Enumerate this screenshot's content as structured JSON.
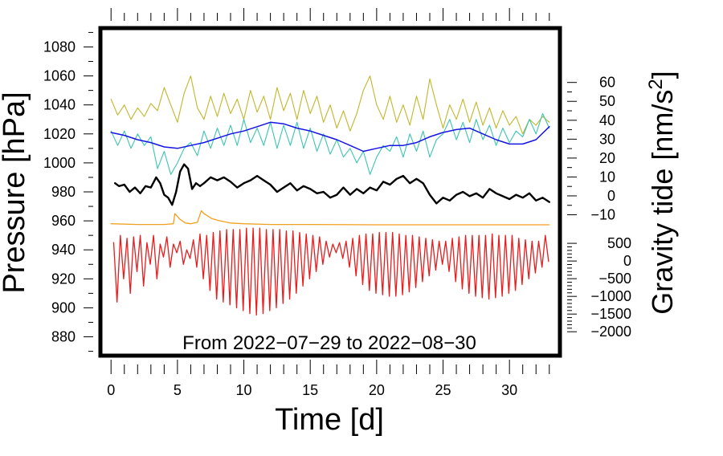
{
  "chart_data": {
    "type": "line",
    "annotation": "From 2022−07−29 to 2022−08−30",
    "xlabel": "Time [d]",
    "ylabel_left": "Pressure [hPa]",
    "ylabel_right_main": "Gravity tide [nm/s",
    "ylabel_right_sup": "2",
    "ylabel_right_tail": "]",
    "xlim": [
      -0.8,
      33.8
    ],
    "x_ticks": [
      "0",
      "5",
      "10",
      "15",
      "20",
      "25",
      "30"
    ],
    "x_tick_values": [
      0,
      5,
      10,
      15,
      20,
      25,
      30
    ],
    "left_axis": {
      "ylim": [
        867,
        1093
      ],
      "ticks": [
        "880",
        "900",
        "920",
        "940",
        "960",
        "980",
        "1000",
        "1020",
        "1040",
        "1060",
        "1080"
      ],
      "tick_values": [
        880,
        900,
        920,
        940,
        960,
        980,
        1000,
        1020,
        1040,
        1060,
        1080
      ]
    },
    "right_axis_upper": {
      "ticks": [
        "60",
        "50",
        "40",
        "30",
        "20",
        "10",
        "0",
        "−10"
      ],
      "tick_values": [
        60,
        50,
        40,
        30,
        20,
        10,
        0,
        -10
      ],
      "hpa_anchor": [
        [
          60,
          1055.5
        ],
        [
          -10,
          964.2
        ]
      ]
    },
    "right_axis_lower": {
      "ticks": [
        "500",
        "0",
        "−500",
        "−1000",
        "−1500",
        "−2000"
      ],
      "tick_values": [
        500,
        0,
        -500,
        -1000,
        -1500,
        -2000
      ],
      "hpa_anchor": [
        [
          500,
          944.5
        ],
        [
          -2000,
          883.5
        ]
      ]
    },
    "series": [
      {
        "name": "gravity-residual-olive",
        "color": "#c2b62c",
        "width": 1.1,
        "x": [
          0.0,
          0.5,
          1.0,
          1.5,
          2.0,
          2.5,
          3.0,
          3.5,
          4.0,
          4.5,
          5.0,
          5.5,
          6.0,
          6.5,
          7.0,
          7.5,
          8.0,
          8.5,
          9.0,
          9.5,
          10.0,
          10.5,
          11.0,
          11.5,
          12.0,
          12.5,
          13.0,
          13.5,
          14.0,
          14.5,
          15.0,
          15.5,
          16.0,
          16.5,
          17.0,
          17.5,
          18.0,
          18.5,
          19.0,
          19.5,
          20.0,
          20.5,
          21.0,
          21.5,
          22.0,
          22.5,
          23.0,
          23.5,
          24.0,
          24.5,
          25.0,
          25.5,
          26.0,
          26.5,
          27.0,
          27.5,
          28.0,
          28.5,
          29.0,
          29.5,
          30.0,
          30.5,
          31.0,
          31.5,
          32.0,
          32.5,
          33.0
        ],
        "y": [
          1044,
          1033,
          1040,
          1030,
          1038,
          1032,
          1041,
          1036,
          1052,
          1040,
          1028,
          1048,
          1060,
          1038,
          1030,
          1046,
          1032,
          1048,
          1034,
          1044,
          1030,
          1050,
          1035,
          1046,
          1030,
          1052,
          1036,
          1048,
          1030,
          1050,
          1034,
          1046,
          1028,
          1040,
          1024,
          1036,
          1022,
          1034,
          1050,
          1060,
          1040,
          1030,
          1046,
          1028,
          1040,
          1026,
          1046,
          1030,
          1058,
          1040,
          1024,
          1040,
          1030,
          1044,
          1028,
          1042,
          1026,
          1038,
          1024,
          1036,
          1026,
          1032,
          1020,
          1030,
          1026,
          1032,
          1028
        ]
      },
      {
        "name": "gravity-residual-teal",
        "color": "#3cc4b4",
        "width": 1.1,
        "x": [
          0.0,
          0.5,
          1.0,
          1.5,
          2.0,
          2.5,
          3.0,
          3.5,
          4.0,
          4.5,
          5.0,
          5.5,
          6.0,
          6.5,
          7.0,
          7.5,
          8.0,
          8.5,
          9.0,
          9.5,
          10.0,
          10.5,
          11.0,
          11.5,
          12.0,
          12.5,
          13.0,
          13.5,
          14.0,
          14.5,
          15.0,
          15.5,
          16.0,
          16.5,
          17.0,
          17.5,
          18.0,
          18.5,
          19.0,
          19.5,
          20.0,
          20.5,
          21.0,
          21.5,
          22.0,
          22.5,
          23.0,
          23.5,
          24.0,
          24.5,
          25.0,
          25.5,
          26.0,
          26.5,
          27.0,
          27.5,
          28.0,
          28.5,
          29.0,
          29.5,
          30.0,
          30.5,
          31.0,
          31.5,
          32.0,
          32.5,
          33.0
        ],
        "y": [
          1022,
          1012,
          1022,
          1010,
          1020,
          1012,
          1018,
          996,
          1008,
          992,
          1000,
          1010,
          1014,
          1005,
          1022,
          1010,
          1024,
          1012,
          1026,
          1012,
          1030,
          1014,
          1024,
          1012,
          1028,
          1010,
          1026,
          1012,
          1028,
          1010,
          1024,
          1008,
          1020,
          1006,
          1016,
          1004,
          1010,
          1000,
          1008,
          992,
          1004,
          1012,
          1008,
          1018,
          1004,
          1020,
          1008,
          1022,
          1004,
          1016,
          1020,
          1030,
          1016,
          1028,
          1014,
          1030,
          1016,
          1026,
          1012,
          1024,
          1014,
          1022,
          1018,
          1030,
          1020,
          1034,
          1024
        ]
      },
      {
        "name": "pressure-smooth-blue",
        "color": "#1414e6",
        "width": 1.5,
        "x": [
          0.0,
          1.0,
          2.0,
          3.0,
          4.0,
          5.0,
          6.0,
          7.0,
          8.0,
          9.0,
          10.0,
          11.0,
          12.0,
          13.0,
          14.0,
          15.0,
          16.0,
          17.0,
          18.0,
          19.0,
          20.0,
          21.0,
          22.0,
          23.0,
          24.0,
          25.0,
          26.0,
          27.0,
          28.0,
          29.0,
          30.0,
          31.0,
          32.0,
          33.0
        ],
        "y": [
          1021,
          1019,
          1016,
          1014,
          1011,
          1010,
          1012,
          1014,
          1017,
          1020,
          1022,
          1025,
          1028,
          1027,
          1024,
          1022,
          1019,
          1016,
          1012,
          1008,
          1010,
          1012,
          1012,
          1014,
          1018,
          1021,
          1023,
          1024,
          1020,
          1016,
          1013,
          1013,
          1016,
          1025
        ]
      },
      {
        "name": "pressure-black",
        "color": "#000000",
        "width": 2.4,
        "x": [
          0.3,
          0.6,
          1.0,
          1.4,
          1.8,
          2.2,
          2.6,
          3.0,
          3.4,
          3.7,
          4.0,
          4.3,
          4.6,
          4.9,
          5.2,
          5.5,
          5.8,
          6.1,
          6.4,
          6.7,
          7.0,
          7.5,
          8.0,
          8.5,
          9.0,
          9.5,
          10.0,
          10.5,
          11.0,
          11.5,
          12.0,
          12.5,
          13.0,
          13.5,
          14.0,
          14.5,
          15.0,
          15.5,
          16.0,
          16.5,
          17.0,
          17.5,
          18.0,
          18.5,
          19.0,
          19.5,
          20.0,
          20.5,
          21.0,
          21.5,
          22.0,
          22.5,
          23.0,
          23.5,
          24.0,
          24.5,
          25.0,
          25.5,
          26.0,
          26.5,
          27.0,
          27.5,
          28.0,
          28.5,
          29.0,
          29.5,
          30.0,
          30.5,
          31.0,
          31.5,
          32.0,
          32.5,
          33.0
        ],
        "y": [
          986,
          984,
          985,
          980,
          983,
          979,
          984,
          983,
          990,
          986,
          978,
          976,
          971,
          980,
          994,
          999,
          996,
          982,
          986,
          984,
          986,
          990,
          988,
          990,
          987,
          983,
          986,
          988,
          991,
          988,
          985,
          980,
          983,
          986,
          981,
          984,
          982,
          979,
          980,
          976,
          978,
          983,
          978,
          982,
          979,
          983,
          981,
          987,
          985,
          989,
          991,
          986,
          989,
          986,
          978,
          972,
          976,
          974,
          978,
          980,
          977,
          979,
          976,
          982,
          979,
          977,
          975,
          978,
          976,
          979,
          974,
          976,
          973
        ]
      },
      {
        "name": "pressure-orange",
        "color": "#f0a020",
        "width": 1.3,
        "x": [
          0.0,
          2.0,
          4.0,
          4.7,
          4.8,
          5.2,
          5.6,
          6.0,
          6.5,
          6.8,
          7.0,
          7.6,
          8.2,
          9.0,
          10.0,
          12.0,
          15.0,
          20.0,
          25.0,
          30.0,
          33.0
        ],
        "y": [
          958,
          957.5,
          957.5,
          958,
          965,
          961,
          958.5,
          958,
          959,
          967,
          965,
          961.5,
          960,
          958.5,
          958,
          957.5,
          957.5,
          957.3,
          957.3,
          957.3,
          957.3
        ]
      },
      {
        "name": "gravity-tide-red",
        "color": "#e81c1c",
        "width": 1.3,
        "x": [
          0.2,
          0.45,
          0.7,
          0.95,
          1.2,
          1.45,
          1.7,
          1.95,
          2.2,
          2.45,
          2.7,
          2.95,
          3.2,
          3.45,
          3.7,
          3.95,
          4.2,
          4.45,
          4.7,
          4.95,
          5.2,
          5.45,
          5.7,
          5.95,
          6.2,
          6.45,
          6.7,
          6.95,
          7.2,
          7.45,
          7.7,
          7.95,
          8.2,
          8.45,
          8.7,
          8.95,
          9.2,
          9.45,
          9.7,
          9.95,
          10.2,
          10.45,
          10.7,
          10.95,
          11.2,
          11.45,
          11.7,
          11.95,
          12.2,
          12.45,
          12.7,
          12.95,
          13.2,
          13.45,
          13.7,
          13.95,
          14.2,
          14.45,
          14.7,
          14.95,
          15.2,
          15.45,
          15.7,
          15.95,
          16.2,
          16.45,
          16.7,
          16.95,
          17.2,
          17.45,
          17.7,
          17.95,
          18.2,
          18.45,
          18.7,
          18.95,
          19.2,
          19.45,
          19.7,
          19.95,
          20.2,
          20.45,
          20.7,
          20.95,
          21.2,
          21.45,
          21.7,
          21.95,
          22.2,
          22.45,
          22.7,
          22.95,
          23.2,
          23.45,
          23.7,
          23.95,
          24.2,
          24.45,
          24.7,
          24.95,
          25.2,
          25.45,
          25.7,
          25.95,
          26.2,
          26.45,
          26.7,
          26.95,
          27.2,
          27.45,
          27.7,
          27.95,
          28.2,
          28.45,
          28.7,
          28.95,
          29.2,
          29.45,
          29.7,
          29.95,
          30.2,
          30.45,
          30.7,
          30.95,
          31.2,
          31.45,
          31.7,
          31.95,
          32.2,
          32.45,
          32.7,
          32.95
        ],
        "y": [
          945,
          904,
          950,
          920,
          948,
          910,
          949,
          925,
          950,
          915,
          945,
          930,
          950,
          920,
          944,
          935,
          949,
          928,
          944,
          938,
          946,
          930,
          940,
          934,
          947,
          928,
          951,
          920,
          950,
          912,
          952,
          906,
          953,
          904,
          954,
          902,
          954,
          900,
          954,
          898,
          955,
          896,
          955,
          895,
          955,
          896,
          954,
          898,
          954,
          900,
          954,
          903,
          953,
          906,
          953,
          910,
          952,
          915,
          951,
          920,
          950,
          925,
          949,
          930,
          946,
          935,
          944,
          938,
          945,
          934,
          946,
          928,
          948,
          922,
          950,
          916,
          951,
          912,
          951,
          910,
          952,
          909,
          952,
          908,
          952,
          908,
          951,
          909,
          950,
          911,
          950,
          914,
          949,
          918,
          948,
          922,
          947,
          926,
          946,
          930,
          946,
          925,
          948,
          918,
          949,
          913,
          950,
          910,
          950,
          908,
          950,
          907,
          950,
          906,
          951,
          907,
          950,
          908,
          950,
          910,
          950,
          912,
          948,
          916,
          947,
          920,
          946,
          924,
          946,
          928,
          950,
          932
        ]
      }
    ]
  }
}
